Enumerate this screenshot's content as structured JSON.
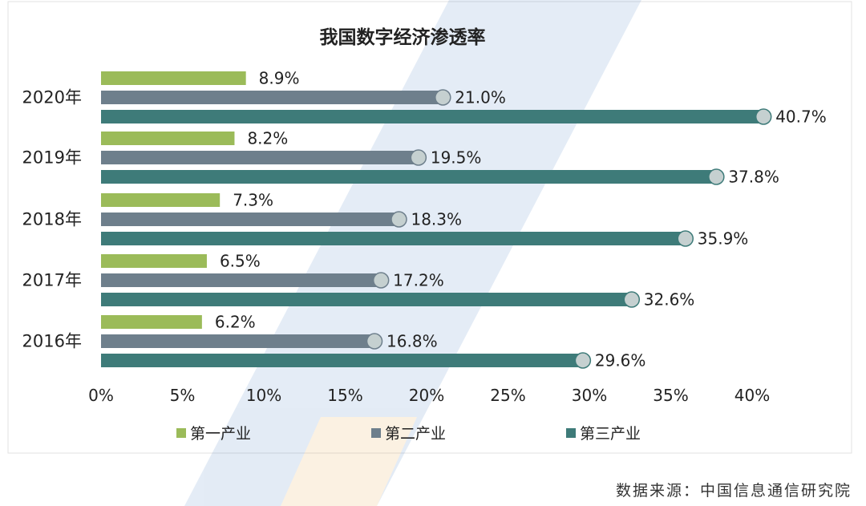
{
  "chart_data": {
    "type": "bar",
    "orientation": "horizontal",
    "title": "我国数字经济渗透率",
    "categories": [
      "2020年",
      "2019年",
      "2018年",
      "2017年",
      "2016年"
    ],
    "series": [
      {
        "name": "第一产业",
        "color": "#9bbb59",
        "values": [
          8.9,
          8.2,
          7.3,
          6.5,
          6.2
        ],
        "labels": [
          "8.9%",
          "8.2%",
          "7.3%",
          "6.5%",
          "6.2%"
        ]
      },
      {
        "name": "第二产业",
        "color": "#6e7f8c",
        "values": [
          21.0,
          19.5,
          18.3,
          17.2,
          16.8
        ],
        "labels": [
          "21.0%",
          "19.5%",
          "18.3%",
          "17.2%",
          "16.8%"
        ]
      },
      {
        "name": "第三产业",
        "color": "#3e7b79",
        "values": [
          40.7,
          37.8,
          35.9,
          32.6,
          29.6
        ],
        "labels": [
          "40.7%",
          "37.8%",
          "35.9%",
          "32.6%",
          "29.6%"
        ]
      }
    ],
    "xlim": [
      0,
      40
    ],
    "x_ticks": [
      "0%",
      "5%",
      "10%",
      "15%",
      "20%",
      "25%",
      "30%",
      "35%",
      "40%"
    ],
    "grid": false,
    "legend_position": "bottom"
  },
  "source": "数据来源：中国信息通信研究院"
}
